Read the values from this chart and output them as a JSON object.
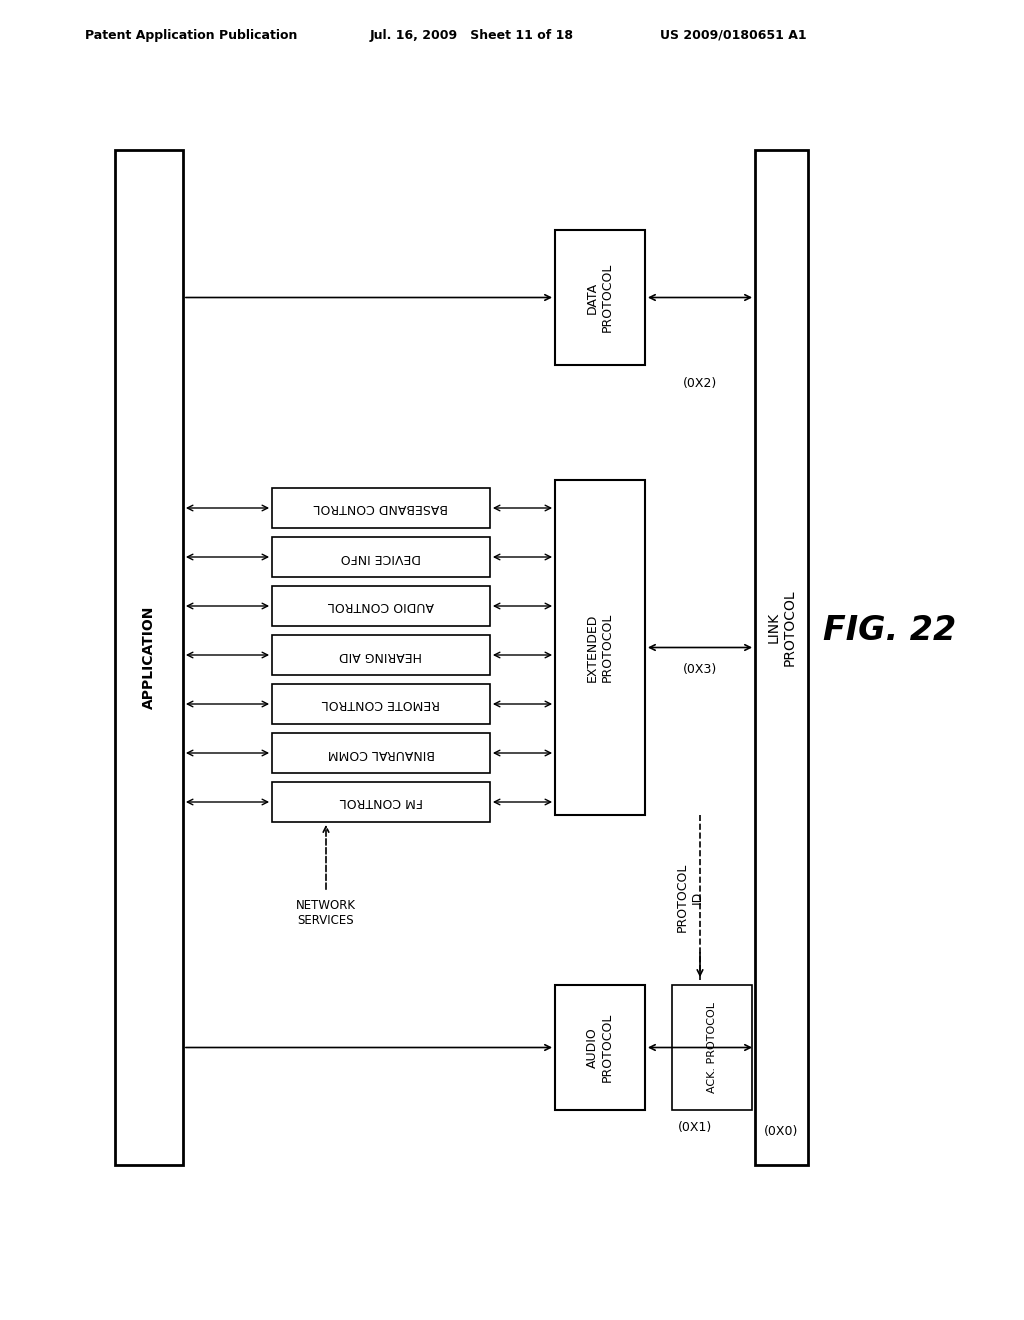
{
  "header_left": "Patent Application Publication",
  "header_mid": "Jul. 16, 2009   Sheet 11 of 18",
  "header_right": "US 2009/0180651 A1",
  "fig_label": "FIG. 22",
  "app_label": "APPLICATION",
  "link_label": "LINK\nPROTOCOL",
  "network_label": "NETWORK\nSERVICES",
  "protocol_id_label": "PROTOCOL\nID",
  "data_protocol_label": "DATA\nPROTOCOL",
  "data_protocol_code": "(0X2)",
  "extended_protocol_label": "EXTENDED\nPROTOCOL",
  "extended_protocol_code": "(0X3)",
  "audio_protocol_label": "AUDIO\nPROTOCOL",
  "audio_protocol_code": "(0X1)",
  "ack_protocol_label": "ACK. PROTOCOL",
  "ack_protocol_code": "(0X0)",
  "sub_protocols": [
    "BASEBAND CONTROL",
    "DEVICE INFO",
    "AUDIO CONTROL",
    "HEARING AID",
    "REMOTE CONTROL",
    "BINAURAL COMM",
    "FM CONTROL"
  ],
  "bg_color": "#ffffff",
  "box_color": "#000000",
  "text_color": "#000000"
}
